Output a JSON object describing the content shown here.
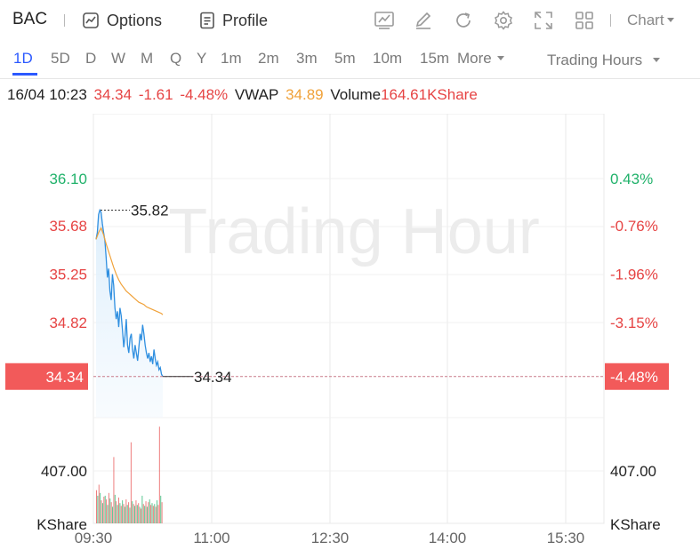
{
  "toolbar": {
    "symbol": "BAC",
    "options_label": "Options",
    "profile_label": "Profile",
    "chart_label": "Chart",
    "icons": [
      "indicator-icon",
      "draw-icon",
      "refresh-icon",
      "settings-icon",
      "fullscreen-icon",
      "layout-icon"
    ]
  },
  "periods": {
    "tabs": [
      "1D",
      "5D",
      "D",
      "W",
      "M",
      "Q",
      "Y",
      "1m",
      "2m",
      "3m",
      "5m",
      "10m",
      "15m"
    ],
    "active": "1D",
    "more_label": "More",
    "session_label": "Trading Hours"
  },
  "quote": {
    "datetime": "16/04 10:23",
    "price": "34.34",
    "change": "-1.61",
    "change_pct": "-4.48%",
    "vwap_label": "VWAP",
    "vwap": "34.89",
    "volume_label": "Volume",
    "volume": "164.61KShare"
  },
  "colors": {
    "up": "#21b26b",
    "down": "#e64444",
    "price_line": "#2f8fe0",
    "vwap_line": "#f0a23a",
    "price_tag": "#f25a5a"
  },
  "chart_data": {
    "type": "line",
    "watermark": "Trading Hour",
    "x_ticks": [
      "09:30",
      "11:00",
      "12:30",
      "14:00",
      "15:30"
    ],
    "price_ticks": [
      {
        "label": "36.10",
        "pct": "0.43%",
        "color": "#21b26b",
        "value": 36.1
      },
      {
        "label": "35.68",
        "pct": "-0.76%",
        "color": "#e64444",
        "value": 35.68
      },
      {
        "label": "35.25",
        "pct": "-1.96%",
        "color": "#e64444",
        "value": 35.25
      },
      {
        "label": "34.82",
        "pct": "-3.15%",
        "color": "#e64444",
        "value": 34.82
      }
    ],
    "current": {
      "label": "34.34",
      "pct": "-4.48%",
      "value": 34.34
    },
    "high_label": "35.82",
    "high_value": 35.82,
    "last_label": "34.34",
    "volume_tick": "407.00",
    "volume_unit": "KShare",
    "price_series": {
      "name": "Price",
      "x_min": [
        0,
        1,
        2,
        3,
        4,
        5,
        6,
        7,
        8,
        9,
        10,
        11,
        12,
        13,
        14,
        15,
        16,
        17,
        18,
        19,
        20,
        21,
        22,
        23,
        24,
        25,
        26,
        27,
        28,
        29,
        30,
        31,
        32,
        33,
        34,
        35,
        36,
        37,
        38,
        39,
        40,
        41,
        42,
        43,
        44,
        45,
        46,
        47,
        48,
        49,
        50,
        51,
        52,
        53
      ],
      "y": [
        35.56,
        35.62,
        35.78,
        35.82,
        35.8,
        35.7,
        35.62,
        35.55,
        35.4,
        35.22,
        35.3,
        35.1,
        35.02,
        35.25,
        35.15,
        34.95,
        34.85,
        34.92,
        34.78,
        34.95,
        34.88,
        34.75,
        34.6,
        34.7,
        34.85,
        34.62,
        34.55,
        34.68,
        34.72,
        34.58,
        34.5,
        34.62,
        34.55,
        34.48,
        34.6,
        34.72,
        34.66,
        34.8,
        34.72,
        34.62,
        34.55,
        34.5,
        34.55,
        34.47,
        34.52,
        34.45,
        34.58,
        34.5,
        34.44,
        34.47,
        34.4,
        34.42,
        34.36,
        34.34
      ]
    },
    "vwap_series": {
      "name": "VWAP",
      "x_min": [
        0,
        2,
        4,
        6,
        8,
        10,
        12,
        14,
        16,
        18,
        20,
        22,
        24,
        26,
        28,
        30,
        32,
        34,
        36,
        38,
        40,
        42,
        44,
        46,
        48,
        50,
        52,
        53
      ],
      "y": [
        35.56,
        35.62,
        35.66,
        35.6,
        35.52,
        35.45,
        35.38,
        35.31,
        35.25,
        35.2,
        35.16,
        35.13,
        35.1,
        35.08,
        35.06,
        35.04,
        35.02,
        35.0,
        34.99,
        34.98,
        34.96,
        34.95,
        34.94,
        34.93,
        34.92,
        34.91,
        34.9,
        34.89
      ]
    },
    "volume_bars": [
      {
        "v": 360,
        "up": false
      },
      {
        "v": 300,
        "up": true
      },
      {
        "v": 420,
        "up": false
      },
      {
        "v": 330,
        "up": true
      },
      {
        "v": 250,
        "up": false
      },
      {
        "v": 220,
        "up": true
      },
      {
        "v": 290,
        "up": false
      },
      {
        "v": 300,
        "up": true
      },
      {
        "v": 260,
        "up": false
      },
      {
        "v": 200,
        "up": true
      },
      {
        "v": 330,
        "up": false
      },
      {
        "v": 270,
        "up": true
      },
      {
        "v": 230,
        "up": false
      },
      {
        "v": 180,
        "up": true
      },
      {
        "v": 720,
        "up": false
      },
      {
        "v": 310,
        "up": true
      },
      {
        "v": 240,
        "up": false
      },
      {
        "v": 200,
        "up": true
      },
      {
        "v": 280,
        "up": false
      },
      {
        "v": 220,
        "up": true
      },
      {
        "v": 190,
        "up": false
      },
      {
        "v": 250,
        "up": true
      },
      {
        "v": 210,
        "up": false
      },
      {
        "v": 180,
        "up": true
      },
      {
        "v": 260,
        "up": false
      },
      {
        "v": 200,
        "up": true
      },
      {
        "v": 230,
        "up": false
      },
      {
        "v": 170,
        "up": true
      },
      {
        "v": 880,
        "up": false
      },
      {
        "v": 240,
        "up": true
      },
      {
        "v": 210,
        "up": false
      },
      {
        "v": 190,
        "up": true
      },
      {
        "v": 250,
        "up": false
      },
      {
        "v": 200,
        "up": true
      },
      {
        "v": 220,
        "up": false
      },
      {
        "v": 180,
        "up": true
      },
      {
        "v": 160,
        "up": false
      },
      {
        "v": 300,
        "up": true
      },
      {
        "v": 210,
        "up": false
      },
      {
        "v": 190,
        "up": true
      },
      {
        "v": 240,
        "up": false
      },
      {
        "v": 180,
        "up": true
      },
      {
        "v": 230,
        "up": false
      },
      {
        "v": 260,
        "up": true
      },
      {
        "v": 200,
        "up": false
      },
      {
        "v": 220,
        "up": true
      },
      {
        "v": 190,
        "up": false
      },
      {
        "v": 210,
        "up": true
      },
      {
        "v": 180,
        "up": false
      },
      {
        "v": 250,
        "up": true
      },
      {
        "v": 200,
        "up": false
      },
      {
        "v": 1050,
        "up": false
      },
      {
        "v": 300,
        "up": true
      },
      {
        "v": 230,
        "up": false
      }
    ],
    "volume_max": 1100
  }
}
